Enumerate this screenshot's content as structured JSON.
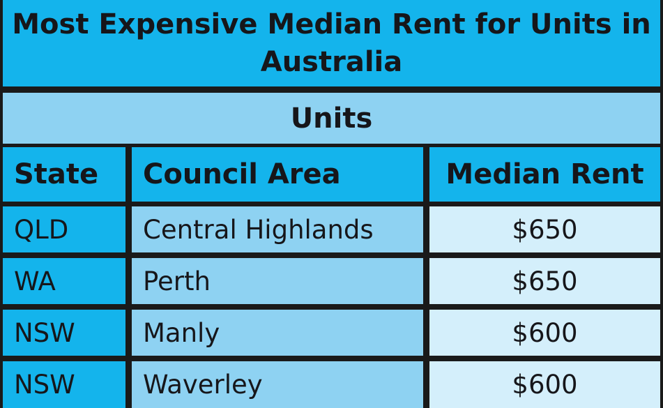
{
  "chart_data": {
    "type": "table",
    "title": "Most Expensive Median Rent for Units in Australia",
    "subtitle": "Units",
    "columns": [
      "State",
      "Council Area",
      "Median Rent"
    ],
    "rows": [
      [
        "QLD",
        "Central Highlands",
        "$650"
      ],
      [
        "WA",
        "Perth",
        "$650"
      ],
      [
        "NSW",
        "Manly",
        "$600"
      ],
      [
        "NSW",
        "Waverley",
        "$600"
      ]
    ]
  },
  "colors": {
    "header": "#14b4ec",
    "subheader": "#8ed2f2",
    "value_column": "#d4effb",
    "border": "#1a1a1a"
  }
}
